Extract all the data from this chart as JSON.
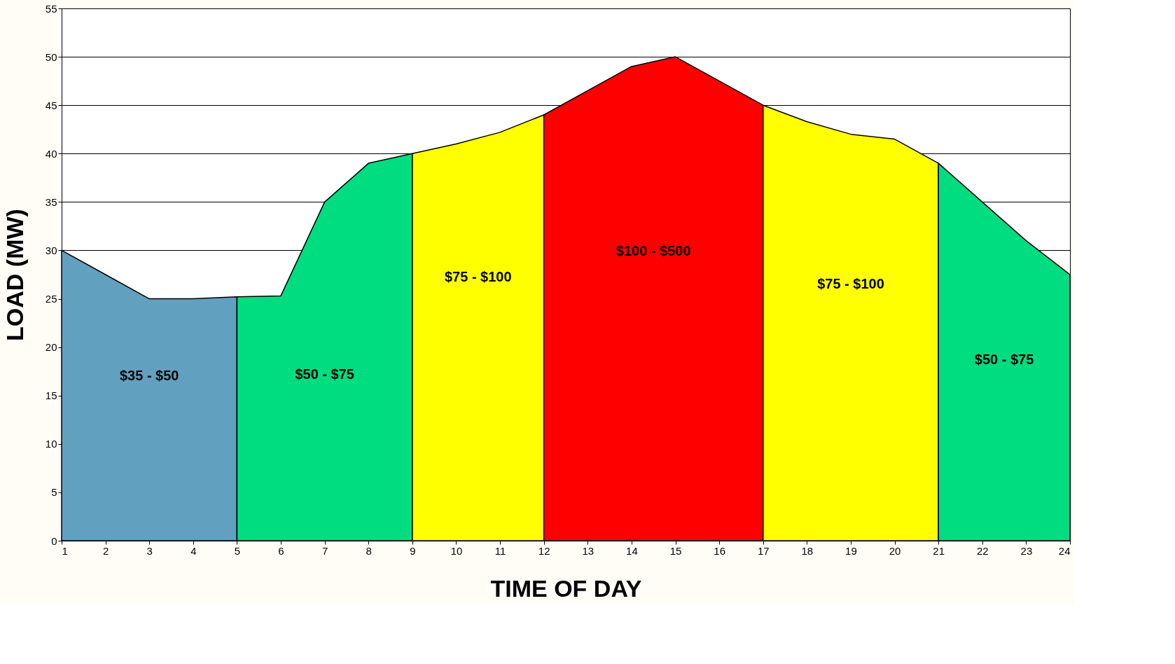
{
  "chart_data": {
    "type": "area",
    "xlabel": "TIME OF DAY",
    "ylabel": "LOAD    (MW)",
    "series": [
      {
        "color": "#62a0c0",
        "x": [
          1,
          2,
          3,
          4,
          5
        ],
        "values": [
          30,
          27.5,
          25,
          25,
          25.2
        ]
      },
      {
        "color": "#00dd80",
        "x": [
          5,
          6,
          7,
          8,
          9
        ],
        "values": [
          25.2,
          25.3,
          35,
          39,
          40
        ]
      },
      {
        "color": "#ffff00",
        "x": [
          9,
          10,
          11,
          12
        ],
        "values": [
          40,
          41,
          42.2,
          44
        ]
      },
      {
        "color": "#ff0000",
        "x": [
          12,
          13,
          14,
          15,
          16,
          17
        ],
        "values": [
          44,
          46.5,
          49,
          50,
          47.5,
          45
        ]
      },
      {
        "color": "#ffff00",
        "x": [
          17,
          18,
          19,
          20,
          21
        ],
        "values": [
          45,
          43.3,
          42,
          41.5,
          39
        ]
      },
      {
        "color": "#00dd80",
        "x": [
          21,
          22,
          23,
          24
        ],
        "values": [
          39,
          35,
          31,
          27.5
        ]
      }
    ],
    "annotations": [
      "$35 - $50",
      "$50 - $75",
      "$75 - $100",
      "$100 - $500",
      "$75 - $100",
      "$50 - $75"
    ],
    "xlim": [
      1,
      24
    ],
    "xticks": [
      1,
      2,
      3,
      4,
      5,
      6,
      7,
      8,
      9,
      10,
      11,
      12,
      13,
      14,
      15,
      16,
      17,
      18,
      19,
      20,
      21,
      22,
      23,
      24
    ],
    "ylim": [
      0,
      55
    ],
    "yticks": [
      0,
      5,
      10,
      15,
      20,
      25,
      30,
      35,
      40,
      45,
      50,
      55
    ],
    "grid": "y"
  }
}
